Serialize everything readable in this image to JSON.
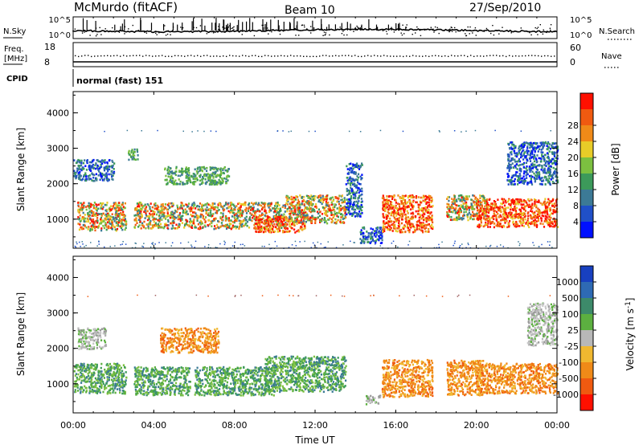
{
  "header": {
    "station": "McMurdo (fitACF)",
    "beam": "Beam 10",
    "date": "27/Sep/2010"
  },
  "sky_panel": {
    "left_label": "N.Sky",
    "right_label": "N.Search",
    "left_ticks": [
      "10^5",
      "10^0"
    ],
    "right_ticks": [
      "10^5",
      "10^0"
    ]
  },
  "freq_panel": {
    "left_label_line1": "Freq.",
    "left_label_line2": "[MHz]",
    "right_label": "Nave",
    "left_ticks": [
      "18",
      "8"
    ],
    "right_ticks": [
      "60",
      "0"
    ],
    "freq_level_mhz": 10,
    "nave_level": 28
  },
  "cpid": {
    "label": "CPID",
    "value": "normal (fast) 151"
  },
  "chart_data": [
    {
      "type": "heatmap",
      "name": "power-panel",
      "ylabel": "Slant Range [km]",
      "y_ticks": [
        "1000",
        "2000",
        "3000",
        "4000"
      ],
      "ylim": [
        180,
        4600
      ],
      "colorbar": {
        "label": "Power [dB]",
        "ticks": [
          "4",
          "8",
          "12",
          "16",
          "20",
          "24",
          "28"
        ],
        "colors": [
          "#0010ff",
          "#2050c8",
          "#3c7a96",
          "#3c9a5a",
          "#7cc040",
          "#e8cc28",
          "#f08a18",
          "#f05a10",
          "#ff1000"
        ]
      },
      "scatter_bands": [
        {
          "t": [
            0.2,
            2.6
          ],
          "r": [
            700,
            1500
          ],
          "hue": "mixed"
        },
        {
          "t": [
            0.0,
            2.0
          ],
          "r": [
            2100,
            2700
          ],
          "hue": "blue"
        },
        {
          "t": [
            2.7,
            3.2
          ],
          "r": [
            2700,
            3000
          ],
          "hue": "green"
        },
        {
          "t": [
            4.5,
            7.7
          ],
          "r": [
            2000,
            2500
          ],
          "hue": "green"
        },
        {
          "t": [
            3.0,
            10.5
          ],
          "r": [
            750,
            1500
          ],
          "hue": "mixed"
        },
        {
          "t": [
            9.0,
            11.5
          ],
          "r": [
            650,
            1100
          ],
          "hue": "red"
        },
        {
          "t": [
            10.5,
            13.5
          ],
          "r": [
            900,
            1700
          ],
          "hue": "mixed"
        },
        {
          "t": [
            13.5,
            14.3
          ],
          "r": [
            1100,
            2600
          ],
          "hue": "blue"
        },
        {
          "t": [
            14.2,
            15.3
          ],
          "r": [
            350,
            800
          ],
          "hue": "blue"
        },
        {
          "t": [
            15.3,
            17.8
          ],
          "r": [
            650,
            1700
          ],
          "hue": "red"
        },
        {
          "t": [
            18.5,
            20.5
          ],
          "r": [
            1000,
            1700
          ],
          "hue": "mixed"
        },
        {
          "t": [
            20.0,
            24.0
          ],
          "r": [
            800,
            1600
          ],
          "hue": "red"
        },
        {
          "t": [
            21.5,
            24.0
          ],
          "r": [
            2000,
            3200
          ],
          "hue": "blue"
        },
        {
          "t": [
            0.0,
            24.0
          ],
          "r": [
            180,
            400
          ],
          "hue": "blue-sparse"
        },
        {
          "t": [
            0.0,
            24.0
          ],
          "r": [
            3480,
            3520
          ],
          "hue": "blue-sparse"
        }
      ]
    },
    {
      "type": "heatmap",
      "name": "velocity-panel",
      "ylabel": "Slant Range [km]",
      "y_ticks": [
        "1000",
        "2000",
        "3000",
        "4000"
      ],
      "ylim": [
        180,
        4600
      ],
      "colorbar": {
        "label": "Velocity [m s^-1]",
        "ticks": [
          "1000",
          "500",
          "100",
          "25",
          "-25",
          "-100",
          "-500",
          "-1000"
        ],
        "colors": [
          "#1840c0",
          "#2e6ab4",
          "#3d8a6a",
          "#5cb040",
          "#b8b8b8",
          "#f0b830",
          "#f08a18",
          "#f05a10",
          "#ff1000"
        ]
      },
      "scatter_bands": [
        {
          "t": [
            0.0,
            2.6
          ],
          "r": [
            750,
            1600
          ],
          "hue": "green"
        },
        {
          "t": [
            0.2,
            1.6
          ],
          "r": [
            2000,
            2600
          ],
          "hue": "gray"
        },
        {
          "t": [
            3.0,
            5.8
          ],
          "r": [
            700,
            1500
          ],
          "hue": "green"
        },
        {
          "t": [
            4.3,
            7.2
          ],
          "r": [
            1900,
            2600
          ],
          "hue": "orange"
        },
        {
          "t": [
            6.0,
            10.0
          ],
          "r": [
            700,
            1500
          ],
          "hue": "green"
        },
        {
          "t": [
            9.5,
            13.5
          ],
          "r": [
            800,
            1800
          ],
          "hue": "green"
        },
        {
          "t": [
            14.5,
            15.2
          ],
          "r": [
            450,
            700
          ],
          "hue": "gray"
        },
        {
          "t": [
            15.3,
            17.8
          ],
          "r": [
            650,
            1700
          ],
          "hue": "orange"
        },
        {
          "t": [
            18.5,
            20.3
          ],
          "r": [
            700,
            1700
          ],
          "hue": "orange"
        },
        {
          "t": [
            20.0,
            24.0
          ],
          "r": [
            750,
            1600
          ],
          "hue": "orange"
        },
        {
          "t": [
            22.5,
            24.0
          ],
          "r": [
            2100,
            3300
          ],
          "hue": "gray"
        },
        {
          "t": [
            0.0,
            24.0
          ],
          "r": [
            3480,
            3520
          ],
          "hue": "red-sparse"
        }
      ]
    }
  ],
  "time_axis": {
    "ticks": [
      "00:00",
      "04:00",
      "08:00",
      "12:00",
      "16:00",
      "20:00",
      "00:00"
    ],
    "label": "Time UT"
  }
}
